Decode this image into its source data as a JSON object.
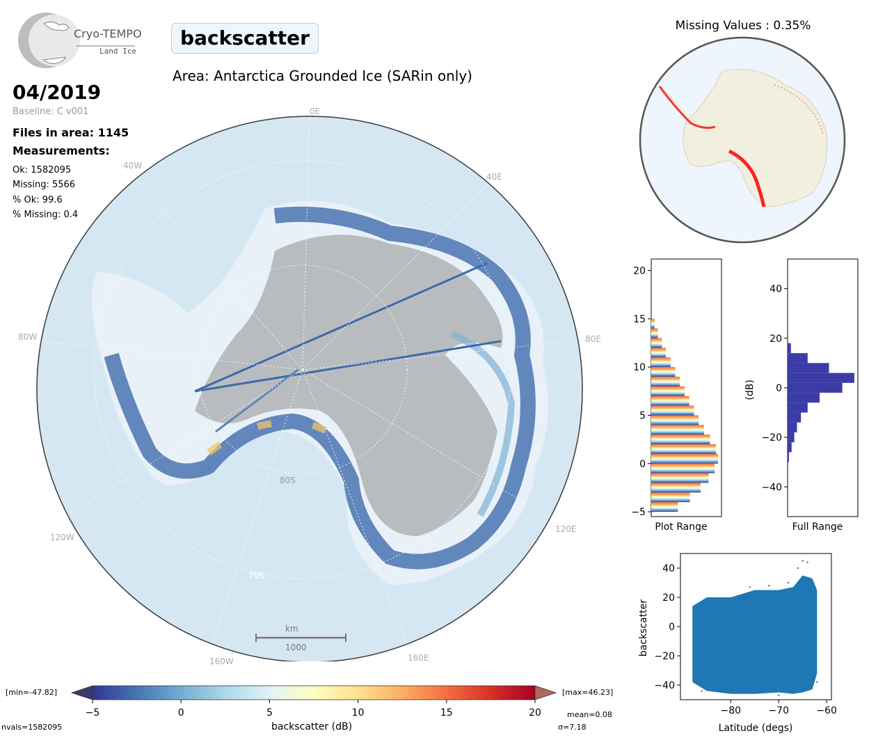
{
  "logo": {
    "name": "Cryo-TEMPO",
    "sub": "Land Ice"
  },
  "parameter": "backscatter",
  "area": "Area: Antarctica Grounded Ice (SARin only)",
  "date": "04/2019",
  "baseline": "Baseline: C v001",
  "files": "Files in area: 1145",
  "measurements_title": "Measurements:",
  "stats": [
    {
      "text": "Ok: 1582095"
    },
    {
      "text": "Missing: 5566"
    },
    {
      "text": "% Ok: 99.6"
    },
    {
      "text": "% Missing: 0.4"
    }
  ],
  "map": {
    "lon_labels": [
      "0E",
      "40E",
      "80E",
      "120E",
      "160E",
      "160W",
      "120W",
      "80W",
      "40W"
    ],
    "lat_labels": [
      "80S",
      "70S"
    ],
    "scalebar_unit": "km",
    "scalebar_value": "1000"
  },
  "missing_title": "Missing Values : 0.35%",
  "colorbar": {
    "min_label": "[min=-47.82]",
    "max_label": "[max=46.23]",
    "ticks": [
      "−5",
      "0",
      "5",
      "10",
      "15",
      "20"
    ],
    "xlabel": "backscatter (dB)",
    "nvals": "nvals=1582095",
    "mean": "mean=0.08",
    "sigma": "σ=7.18",
    "colors": [
      "#313695",
      "#4575b4",
      "#74add1",
      "#abd9e9",
      "#e0f3f8",
      "#ffffbf",
      "#fee090",
      "#fdae61",
      "#f46d43",
      "#d73027",
      "#a50026"
    ]
  },
  "accent": {
    "hist_full": "#3c3ca8",
    "scatter": "#1f77b4",
    "missing": "#ff0000"
  },
  "chart_data": [
    {
      "type": "bar",
      "orientation": "horizontal",
      "xlabel": "Plot Range",
      "ylabel": "",
      "ylim": [
        -5.5,
        21.2
      ],
      "yticks": [
        "−5",
        "0",
        "5",
        "10",
        "15",
        "20"
      ],
      "tick_values": [
        -5,
        0,
        5,
        10,
        15,
        20
      ],
      "bins": [
        -5,
        -4,
        -3,
        -2,
        -1,
        0,
        1,
        2,
        3,
        4,
        5,
        6,
        7,
        8,
        9,
        10,
        11,
        12,
        13,
        14,
        15
      ],
      "values": [
        0.4,
        0.58,
        0.74,
        0.86,
        0.95,
        1.0,
        0.97,
        0.88,
        0.79,
        0.71,
        0.64,
        0.57,
        0.5,
        0.43,
        0.36,
        0.29,
        0.22,
        0.16,
        0.1,
        0.05,
        0.0
      ]
    },
    {
      "type": "bar",
      "orientation": "horizontal",
      "xlabel": "Full Range",
      "ylabel": "(dB)",
      "ylim": [
        -52,
        52
      ],
      "yticks": [
        "−40",
        "−20",
        "0",
        "20",
        "40"
      ],
      "tick_values": [
        -40,
        -20,
        0,
        20,
        40
      ],
      "bins": [
        -30,
        -26,
        -22,
        -18,
        -14,
        -10,
        -6,
        -2,
        2,
        6,
        10,
        14
      ],
      "values": [
        0.02,
        0.06,
        0.1,
        0.14,
        0.2,
        0.3,
        0.48,
        0.82,
        1.0,
        0.62,
        0.3,
        0.05
      ]
    },
    {
      "type": "scatter",
      "xlabel": "Latitude (degs)",
      "ylabel": "backscatter",
      "xlim": [
        -90.5,
        -59
      ],
      "ylim": [
        -50,
        50
      ],
      "xticks": [
        "−80",
        "−70",
        "−60"
      ],
      "xtick_values": [
        -80,
        -70,
        -60
      ],
      "yticks": [
        "−40",
        "−20",
        "0",
        "20",
        "40"
      ],
      "ytick_values": [
        -40,
        -20,
        0,
        20,
        40
      ],
      "envelope": {
        "lat": [
          -88,
          -85,
          -80,
          -75,
          -70,
          -67,
          -65,
          -63,
          -62
        ],
        "upper": [
          14,
          20,
          20,
          25,
          25,
          27,
          35,
          33,
          25
        ],
        "lower": [
          -38,
          -44,
          -46,
          -46,
          -45,
          -46,
          -45,
          -43,
          -32
        ]
      }
    }
  ]
}
